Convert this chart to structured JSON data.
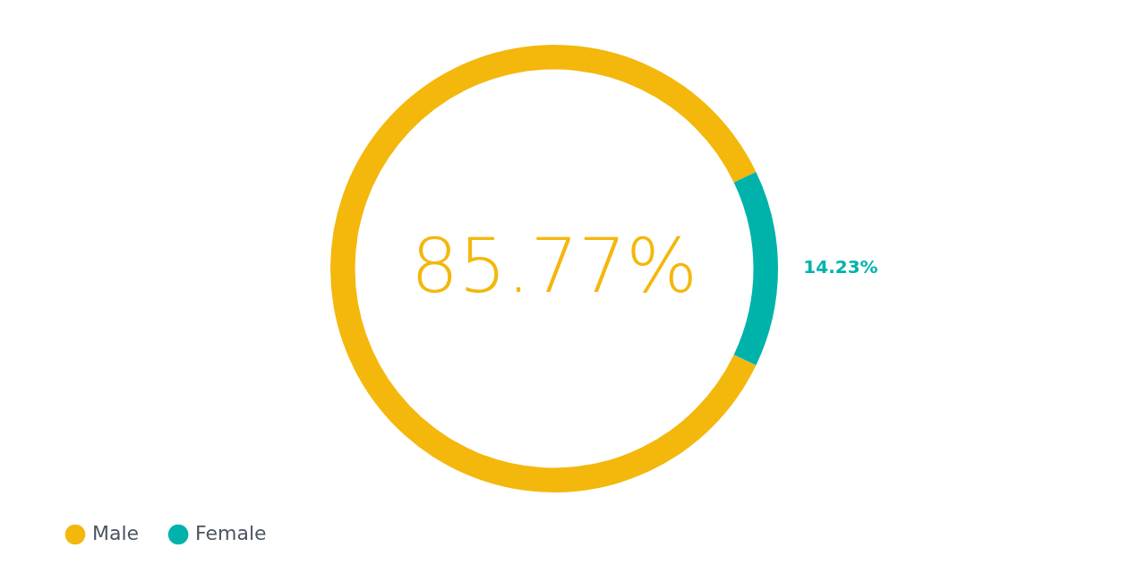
{
  "chart_data": {
    "type": "donut",
    "categories": [
      "Male",
      "Female"
    ],
    "values": [
      85.77,
      14.23
    ],
    "colors": [
      "#f4b70c",
      "#00b3aa"
    ],
    "value_labels": [
      "85.77%",
      "14.23%"
    ],
    "legend": "bottom left"
  }
}
